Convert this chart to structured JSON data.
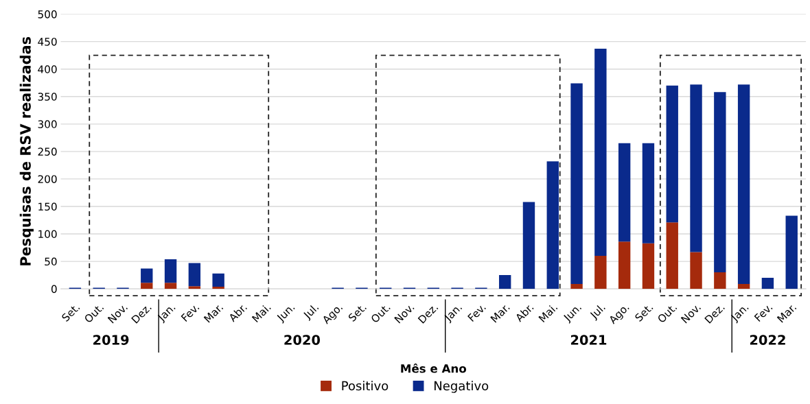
{
  "chart_data": {
    "type": "bar",
    "stacked": true,
    "xlabel": "Mês e Ano",
    "ylabel": "Pesquisas de RSV realizadas",
    "categories": [
      "Set.",
      "Out.",
      "Nov.",
      "Dez.",
      "Jan.",
      "Fev.",
      "Mar.",
      "Abr.",
      "Mai.",
      "Jun.",
      "Jul.",
      "Ago.",
      "Set.",
      "Out.",
      "Nov.",
      "Dez.",
      "Jan.",
      "Fev.",
      "Mar.",
      "Abr.",
      "Mai.",
      "Jun.",
      "Jul.",
      "Ago.",
      "Set.",
      "Out.",
      "Nov.",
      "Dez.",
      "Jan.",
      "Fev.",
      "Mar."
    ],
    "series": [
      {
        "name": "Positivo",
        "color": "#a52a0c",
        "values": [
          0,
          0,
          0,
          11,
          11,
          5,
          4,
          0,
          0,
          0,
          0,
          0,
          0,
          0,
          0,
          0,
          0,
          0,
          0,
          0,
          0,
          9,
          60,
          86,
          83,
          121,
          67,
          30,
          9,
          0,
          0
        ]
      },
      {
        "name": "Negativo",
        "color": "#0a2a8c",
        "values": [
          2,
          2,
          2,
          26,
          43,
          42,
          24,
          0,
          0,
          0,
          0,
          2,
          2,
          2,
          2,
          2,
          2,
          2,
          25,
          158,
          232,
          365,
          377,
          179,
          182,
          249,
          305,
          328,
          363,
          20,
          133
        ]
      }
    ],
    "ylim": [
      0,
      500
    ],
    "yticks": [
      0,
      50,
      100,
      150,
      200,
      250,
      300,
      350,
      400,
      450,
      500
    ],
    "grid": "y",
    "legend": "bottom",
    "annotations": [
      "2019",
      "2020",
      "2021",
      "2022"
    ]
  }
}
